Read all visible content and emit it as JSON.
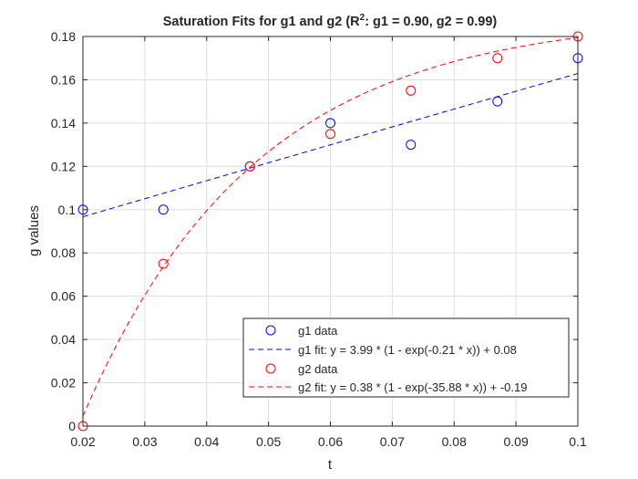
{
  "chart_data": {
    "type": "scatter",
    "title": {
      "prefix": "Saturation Fits for g1 and g2 (R",
      "superscript": "2",
      "suffix": ": g1 = 0.90, g2 = 0.99)"
    },
    "xlabel": "t",
    "ylabel": "g values",
    "xlim": [
      0.02,
      0.1
    ],
    "ylim": [
      0,
      0.18
    ],
    "xticks": [
      0.02,
      0.03,
      0.04,
      0.05,
      0.06,
      0.07,
      0.08,
      0.09,
      0.1
    ],
    "xtick_labels": [
      "0.02",
      "0.03",
      "0.04",
      "0.05",
      "0.06",
      "0.07",
      "0.08",
      "0.09",
      "0.1"
    ],
    "yticks": [
      0,
      0.02,
      0.04,
      0.06,
      0.08,
      0.1,
      0.12,
      0.14,
      0.16,
      0.18
    ],
    "ytick_labels": [
      "0",
      "0.02",
      "0.04",
      "0.06",
      "0.08",
      "0.1",
      "0.12",
      "0.14",
      "0.16",
      "0.18"
    ],
    "grid": true,
    "legend_position": "bottom-right",
    "series": [
      {
        "name": "g1 data",
        "kind": "markers",
        "marker": "circle",
        "color": "#0000ff",
        "x": [
          0.02,
          0.033,
          0.047,
          0.06,
          0.073,
          0.087,
          0.1
        ],
        "y": [
          0.1,
          0.1,
          0.12,
          0.14,
          0.13,
          0.15,
          0.17
        ]
      },
      {
        "name": "g1 fit: y = 3.99 * (1 - exp(-0.21 * x)) + 0.08",
        "kind": "line",
        "line_style": "dashed",
        "color": "#0000ff",
        "model": {
          "A": 3.99,
          "k": 0.21,
          "c": 0.08
        }
      },
      {
        "name": "g2 data",
        "kind": "markers",
        "marker": "circle",
        "color": "#ff0000",
        "x": [
          0.02,
          0.033,
          0.047,
          0.06,
          0.073,
          0.087,
          0.1
        ],
        "y": [
          0.0,
          0.075,
          0.12,
          0.135,
          0.155,
          0.17,
          0.18
        ]
      },
      {
        "name": "g2 fit: y = 0.38 * (1 - exp(-35.88 * x)) + -0.19",
        "kind": "line",
        "line_style": "dashed",
        "color": "#ff0000",
        "model": {
          "A": 0.38,
          "k": 35.88,
          "c": -0.19
        }
      }
    ]
  }
}
